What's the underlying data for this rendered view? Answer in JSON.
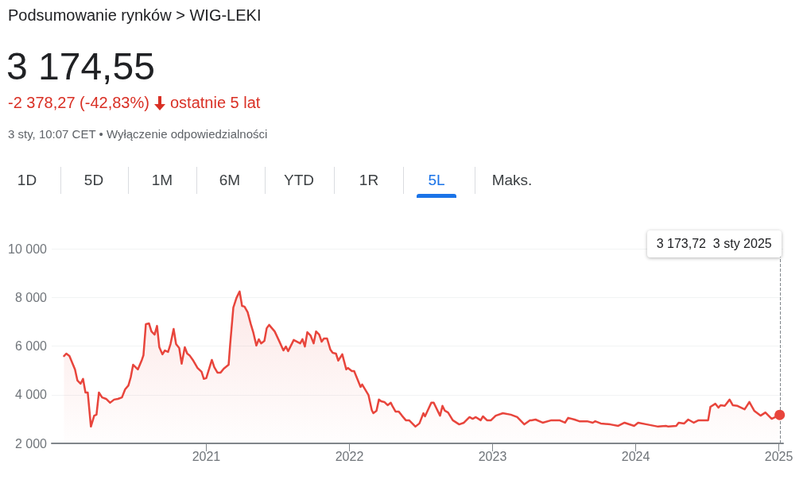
{
  "chart_data": {
    "type": "area",
    "title": "Podsumowanie rynków > WIG-LEKI",
    "subtitle": "3 174,55",
    "annotations": [
      "-2 378,27 (-42,83%)",
      "ostatnie 5 lat",
      "3 sty, 10:07 CET • Wyłączenie odpowiedzialności",
      "1D",
      "5D",
      "1M",
      "6M",
      "YTD",
      "1R",
      "5L",
      "Maks.",
      "3 173,72  3 sty 2025"
    ],
    "x": [
      2020.006,
      2020.022,
      2020.044,
      2020.083,
      2020.1,
      2020.122,
      2020.139,
      2020.156,
      2020.172,
      2020.194,
      2020.217,
      2020.233,
      2020.25,
      2020.272,
      2020.3,
      2020.328,
      2020.356,
      2020.383,
      2020.411,
      2020.433,
      2020.456,
      2020.472,
      2020.489,
      2020.522,
      2020.55,
      2020.561,
      2020.578,
      2020.6,
      2020.617,
      2020.639,
      2020.656,
      2020.672,
      2020.694,
      2020.711,
      2020.733,
      2020.75,
      2020.772,
      2020.789,
      2020.811,
      2020.828,
      2020.85,
      2020.867,
      2020.883,
      2020.906,
      2020.939,
      2020.967,
      2020.983,
      2021.0,
      2021.039,
      2021.056,
      2021.078,
      2021.1,
      2021.122,
      2021.156,
      2021.167,
      2021.189,
      2021.211,
      2021.233,
      2021.25,
      2021.267,
      2021.289,
      2021.311,
      2021.328,
      2021.35,
      2021.367,
      2021.383,
      2021.406,
      2021.422,
      2021.439,
      2021.478,
      2021.506,
      2021.539,
      2021.556,
      2021.572,
      2021.611,
      2021.656,
      2021.672,
      2021.689,
      2021.706,
      2021.728,
      2021.75,
      2021.767,
      2021.789,
      2021.806,
      2021.822,
      2021.844,
      2021.867,
      2021.883,
      2021.906,
      2021.922,
      2021.95,
      2021.978,
      2021.989,
      2022.017,
      2022.033,
      2022.078,
      2022.089,
      2022.133,
      2022.156,
      2022.167,
      2022.189,
      2022.206,
      2022.222,
      2022.244,
      2022.267,
      2022.289,
      2022.3,
      2022.322,
      2022.344,
      2022.367,
      2022.394,
      2022.417,
      2022.461,
      2022.489,
      2022.517,
      2022.528,
      2022.572,
      2022.589,
      2022.633,
      2022.65,
      2022.667,
      2022.689,
      2022.722,
      2022.767,
      2022.8,
      2022.839,
      2022.861,
      2022.883,
      2022.917,
      2022.933,
      2022.961,
      2022.989,
      2023.022,
      2023.072,
      2023.128,
      2023.172,
      2023.222,
      2023.261,
      2023.272,
      2023.3,
      2023.35,
      2023.411,
      2023.467,
      2023.506,
      2023.528,
      2023.572,
      2023.606,
      2023.661,
      2023.7,
      2023.717,
      2023.756,
      2023.822,
      2023.878,
      2023.922,
      2023.989,
      2024.017,
      2024.078,
      2024.156,
      2024.211,
      2024.228,
      2024.283,
      2024.3,
      2024.339,
      2024.367,
      2024.406,
      2024.439,
      2024.506,
      2024.522,
      2024.556,
      2024.578,
      2024.594,
      2024.622,
      2024.656,
      2024.678,
      2024.711,
      2024.761,
      2024.794,
      2024.828,
      2024.872,
      2024.906,
      2024.95,
      2025.006
    ],
    "values": [
      5590,
      5690,
      5590,
      5040,
      4580,
      4450,
      4650,
      4090,
      4090,
      2690,
      3140,
      3180,
      4090,
      3890,
      3830,
      3670,
      3800,
      3830,
      3890,
      4220,
      4380,
      4710,
      5230,
      5040,
      5430,
      5620,
      6900,
      6930,
      6600,
      6470,
      6830,
      5950,
      5660,
      5820,
      5760,
      6080,
      6700,
      6080,
      5920,
      5270,
      5950,
      5690,
      5620,
      5430,
      5100,
      4940,
      4650,
      4680,
      5430,
      5130,
      4910,
      4910,
      5070,
      5230,
      6080,
      7580,
      7980,
      8240,
      7650,
      7620,
      7390,
      6900,
      6570,
      6020,
      6280,
      6110,
      6210,
      6730,
      6870,
      6600,
      6250,
      5820,
      5980,
      5790,
      6250,
      6110,
      6280,
      5980,
      6570,
      6440,
      6110,
      6600,
      6470,
      6180,
      6310,
      6310,
      5850,
      5720,
      5690,
      5400,
      5660,
      5040,
      5100,
      4970,
      4970,
      4320,
      4420,
      3990,
      3370,
      3240,
      3340,
      3800,
      3730,
      3700,
      3570,
      3670,
      3540,
      3310,
      3310,
      3140,
      2950,
      2950,
      2690,
      2820,
      3240,
      3110,
      3670,
      3670,
      3140,
      3540,
      3340,
      3270,
      2950,
      2780,
      2850,
      3080,
      3010,
      3080,
      2950,
      3110,
      2950,
      2950,
      3140,
      3240,
      3180,
      3080,
      2780,
      2950,
      2950,
      2980,
      2850,
      2950,
      2950,
      2850,
      3050,
      2980,
      2910,
      2910,
      2850,
      2910,
      2820,
      2780,
      2720,
      2850,
      2720,
      2850,
      2780,
      2690,
      2720,
      2690,
      2720,
      2850,
      2820,
      2980,
      2850,
      2950,
      2950,
      3500,
      3630,
      3470,
      3570,
      3540,
      3800,
      3570,
      3540,
      3400,
      3700,
      3340,
      3140,
      3270,
      3010,
      3170
    ],
    "color": "#e8453c",
    "xlim": [
      2019.92,
      2025.03
    ],
    "xticks": [
      2021,
      2022,
      2023,
      2024,
      2025
    ],
    "ylim": [
      2000,
      10000
    ],
    "yticks": [
      {
        "value": 2000,
        "label": "2 000"
      },
      {
        "value": 4000,
        "label": "4 000"
      },
      {
        "value": 6000,
        "label": "6 000"
      },
      {
        "value": 8000,
        "label": "8 000"
      },
      {
        "value": 10000,
        "label": "10 000"
      }
    ],
    "ref_lines": [
      {
        "axis": "x",
        "value": 2025.006,
        "color": "#80868b",
        "line_style": "dashed"
      }
    ],
    "grid": "y",
    "marker": "none",
    "line_style": "solid"
  }
}
